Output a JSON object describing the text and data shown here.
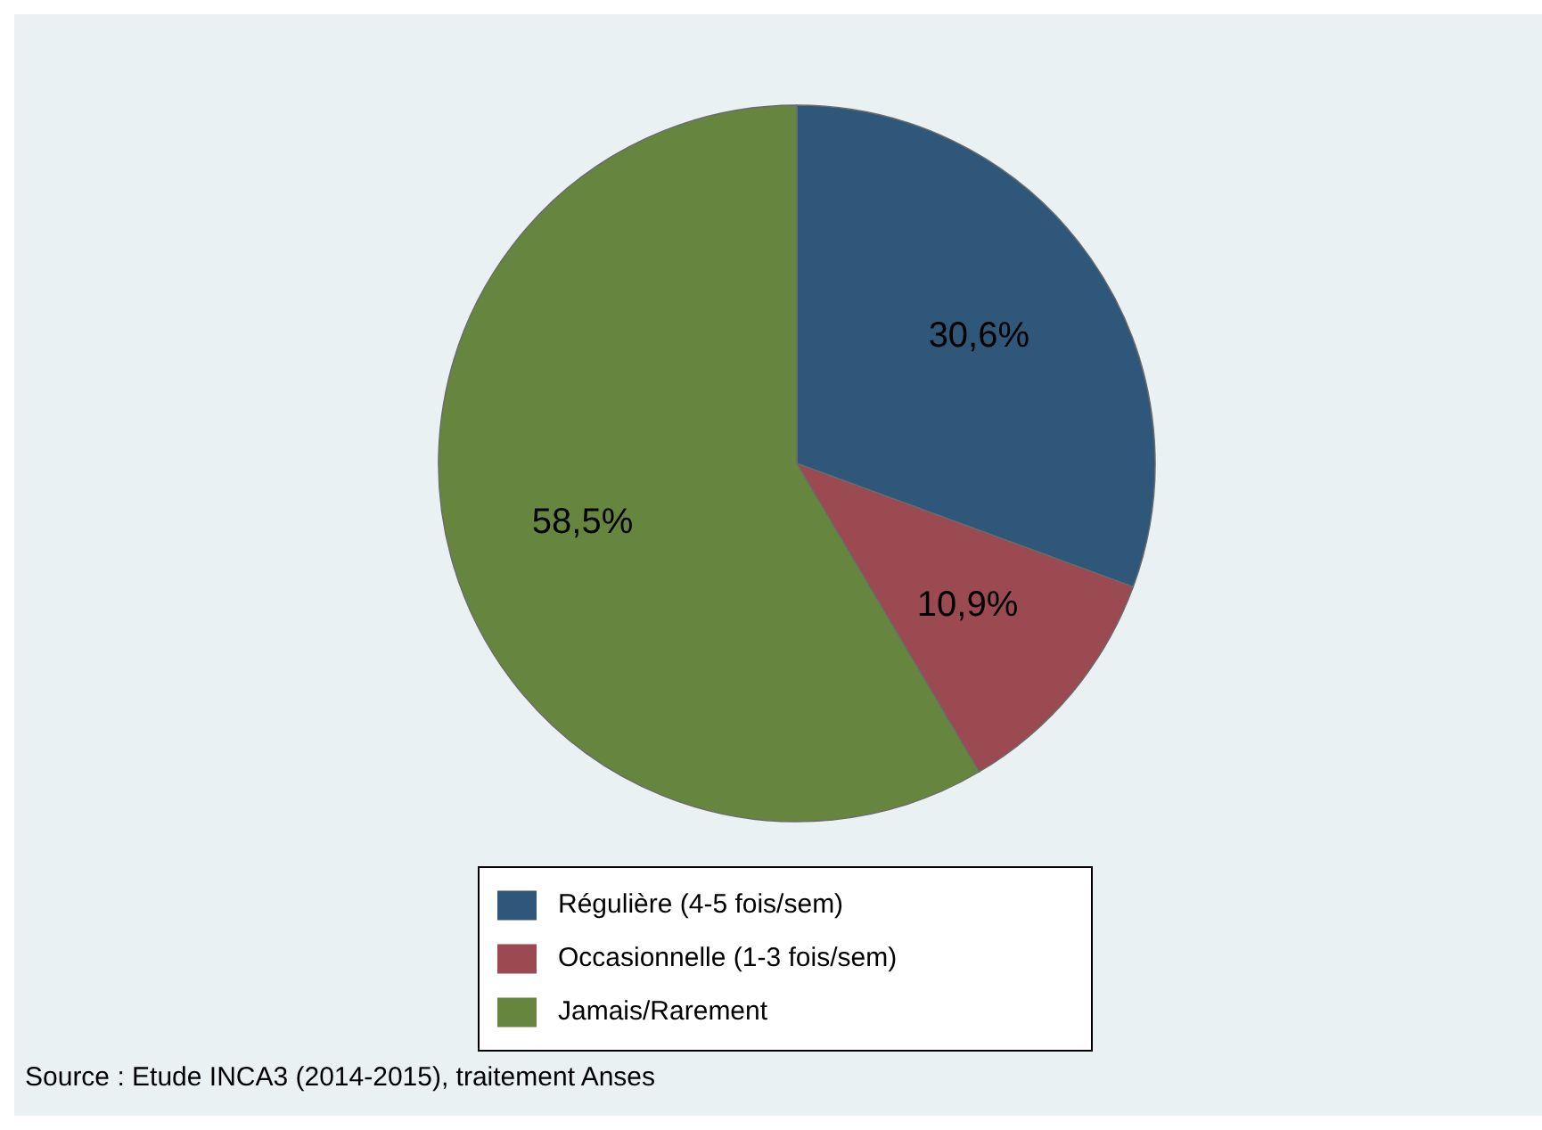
{
  "chart_data": {
    "type": "pie",
    "categories": [
      "Régulière (4-5 fois/sem)",
      "Occasionnelle (1-3 fois/sem)",
      "Jamais/Rarement"
    ],
    "values": [
      30.6,
      10.9,
      58.5
    ],
    "colors": [
      "#2f5779",
      "#9a4a50",
      "#66853f"
    ],
    "value_labels": [
      "30,6%",
      "10,9%",
      "58,5%"
    ],
    "legend": "bottom",
    "annotations": [
      "Source : Etude INCA3 (2014-2015), traitement Anses"
    ]
  }
}
